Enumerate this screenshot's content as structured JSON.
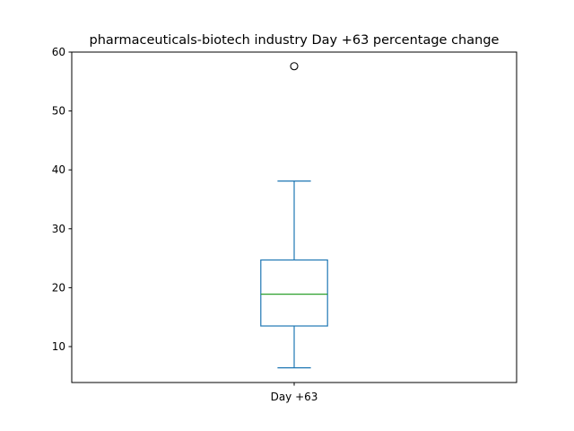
{
  "chart_data": {
    "type": "box",
    "title": "pharmaceuticals-biotech industry Day +63 percentage change",
    "xlabel": "",
    "ylabel": "",
    "ylim": [
      3.9,
      60
    ],
    "yticks": [
      10,
      20,
      30,
      40,
      50,
      60
    ],
    "grid": false,
    "categories": [
      "Day +63"
    ],
    "boxes": [
      {
        "label": "Day +63",
        "whisker_low": 6.4,
        "q1": 13.5,
        "median": 18.9,
        "q3": 24.7,
        "whisker_high": 38.1,
        "outliers": [
          57.6
        ]
      }
    ],
    "colors": {
      "box": "#1f77b4",
      "median": "#2ca02c",
      "flier": "#000000",
      "axes": "#000000"
    }
  }
}
